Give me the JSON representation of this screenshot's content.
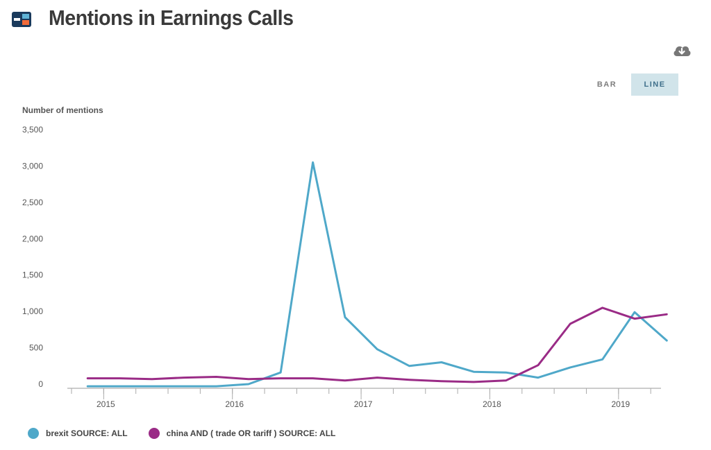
{
  "header": {
    "title": "Mentions in Earnings Calls"
  },
  "icons": {
    "logo": "brand-logo-icon",
    "download": "cloud-download-icon"
  },
  "toggle": {
    "bar_label": "BAR",
    "line_label": "LINE",
    "selected": "LINE"
  },
  "colors": {
    "brexit": "#4fa8c9",
    "china": "#9a2b86",
    "axis": "#999999"
  },
  "chart_data": {
    "type": "line",
    "ylabel": "Number of mentions",
    "ylim": [
      0,
      3500
    ],
    "yticks": [
      "3,500",
      "3,000",
      "2,500",
      "2,000",
      "1,500",
      "1,000",
      "500",
      "0"
    ],
    "ytick_values": [
      3500,
      3000,
      2500,
      2000,
      1500,
      1000,
      500,
      0
    ],
    "xlim": [
      2014.75,
      2019.33
    ],
    "xticks": [
      "2015",
      "2016",
      "2017",
      "2018",
      "2019"
    ],
    "xtick_values": [
      2015,
      2016,
      2017,
      2018,
      2019
    ],
    "series": [
      {
        "name": "brexit SOURCE: ALL",
        "x": [
          2014.875,
          2015.125,
          2015.375,
          2015.625,
          2015.875,
          2016.125,
          2016.375,
          2016.625,
          2016.875,
          2017.125,
          2017.375,
          2017.625,
          2017.875,
          2018.125,
          2018.375,
          2018.625,
          2018.875,
          2019.125,
          2019.375
        ],
        "values": [
          -30,
          -30,
          -30,
          -30,
          -30,
          0,
          160,
          3050,
          920,
          480,
          250,
          300,
          170,
          160,
          90,
          230,
          340,
          990,
          600
        ]
      },
      {
        "name": "china AND ( trade OR tariff ) SOURCE: ALL",
        "x": [
          2014.875,
          2015.125,
          2015.375,
          2015.625,
          2015.875,
          2016.125,
          2016.375,
          2016.625,
          2016.875,
          2017.125,
          2017.375,
          2017.625,
          2017.875,
          2018.125,
          2018.375,
          2018.625,
          2018.875,
          2019.125,
          2019.375
        ],
        "values": [
          80,
          80,
          70,
          90,
          100,
          70,
          80,
          80,
          50,
          90,
          60,
          40,
          30,
          50,
          260,
          830,
          1050,
          900,
          960
        ]
      }
    ]
  }
}
